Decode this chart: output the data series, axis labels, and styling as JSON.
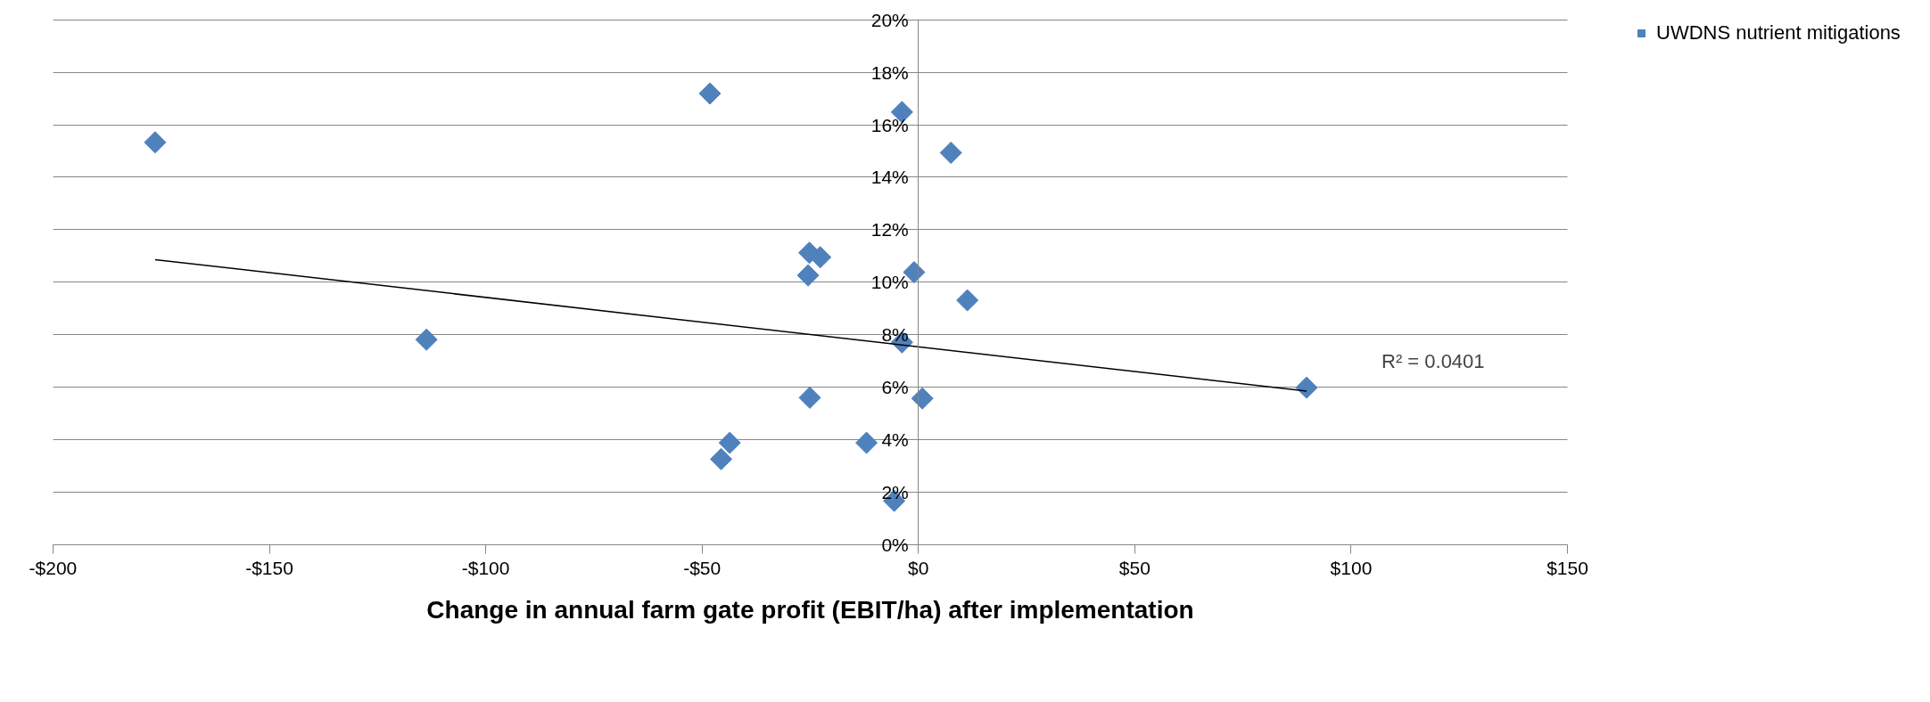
{
  "chart_data": {
    "type": "scatter",
    "xlabel": "Change in annual farm gate profit (EBIT/ha) after implementation",
    "xlim": [
      -200,
      150
    ],
    "xticks": [
      {
        "value": -200,
        "label": "-$200"
      },
      {
        "value": -150,
        "label": "-$150"
      },
      {
        "value": -100,
        "label": "-$100"
      },
      {
        "value": -50,
        "label": "-$50"
      },
      {
        "value": 0,
        "label": "$0"
      },
      {
        "value": 50,
        "label": "$50"
      },
      {
        "value": 100,
        "label": "$100"
      },
      {
        "value": 150,
        "label": "$150"
      }
    ],
    "ylim": [
      0,
      20
    ],
    "yticks": [
      {
        "value": 0,
        "label": "0%"
      },
      {
        "value": 2,
        "label": "2%"
      },
      {
        "value": 4,
        "label": "4%"
      },
      {
        "value": 6,
        "label": "6%"
      },
      {
        "value": 8,
        "label": "8%"
      },
      {
        "value": 10,
        "label": "10%"
      },
      {
        "value": 12,
        "label": "12%"
      },
      {
        "value": 14,
        "label": "14%"
      },
      {
        "value": 16,
        "label": "16%"
      },
      {
        "value": 18,
        "label": "18%"
      },
      {
        "value": 20,
        "label": "20%"
      }
    ],
    "grid": "y",
    "legend": "right",
    "marker": "diamond",
    "annotations": [
      "R² = 0.0401"
    ],
    "series": [
      {
        "name": "UWDNS nutrient mitigations",
        "color": "#4f81bd",
        "x": [
          -176.4,
          -48.2,
          -3.8,
          7.5,
          -25.2,
          -22.7,
          -25.5,
          -1.0,
          11.3,
          89.7,
          0.9,
          -3.8,
          -113.7,
          -25.1,
          -43.6,
          -45.6,
          -12.0,
          -5.6
        ],
        "values": [
          15.33,
          17.19,
          16.48,
          14.93,
          11.12,
          10.95,
          10.26,
          10.38,
          9.31,
          5.98,
          5.57,
          7.71,
          7.81,
          5.6,
          3.88,
          3.26,
          3.88,
          1.67
        ]
      },
      {
        "type": "line",
        "color": "#000000",
        "marker": "none",
        "x": [
          -176.4,
          89.7
        ],
        "values": [
          10.86,
          5.85
        ]
      }
    ]
  }
}
